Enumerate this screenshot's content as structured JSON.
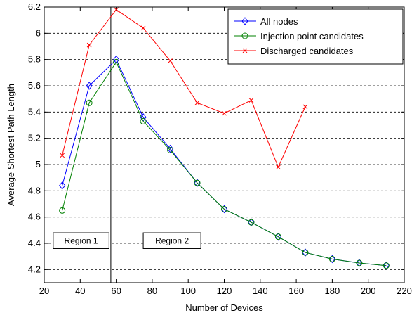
{
  "chart_data": {
    "type": "line",
    "xlabel": "Number of Devices",
    "ylabel": "Average Shortest Path Length",
    "xlim": [
      20,
      220
    ],
    "ylim": [
      4.1,
      6.2
    ],
    "xticks": [
      20,
      40,
      60,
      80,
      100,
      120,
      140,
      160,
      180,
      200,
      220
    ],
    "yticks": [
      4.2,
      4.4,
      4.6,
      4.8,
      5.0,
      5.2,
      5.4,
      5.6,
      5.8,
      6.0,
      6.2
    ],
    "xtick_labels": [
      "20",
      "40",
      "60",
      "80",
      "100",
      "120",
      "140",
      "160",
      "180",
      "200",
      "220"
    ],
    "ytick_labels": [
      "4.2",
      "4.4",
      "4.6",
      "4.8",
      "5",
      "5.2",
      "5.4",
      "5.6",
      "5.8",
      "6",
      "6.2"
    ],
    "grid": "horizontal dashed",
    "legend_position": "top-right",
    "series": [
      {
        "name": "All nodes",
        "color": "#0000ff",
        "marker": "diamond",
        "x": [
          30,
          45,
          60,
          75,
          90,
          105,
          120,
          135,
          150,
          165,
          180,
          195,
          210
        ],
        "y": [
          4.84,
          5.6,
          5.8,
          5.36,
          5.12,
          4.86,
          4.66,
          4.56,
          4.45,
          4.33,
          4.28,
          4.25,
          4.23
        ]
      },
      {
        "name": "Injection point candidates",
        "color": "#008000",
        "marker": "circle",
        "x": [
          30,
          45,
          60,
          75,
          90,
          105,
          120,
          135,
          150,
          165,
          180,
          195,
          210
        ],
        "y": [
          4.65,
          5.47,
          5.78,
          5.33,
          5.11,
          4.86,
          4.66,
          4.56,
          4.45,
          4.33,
          4.28,
          4.25,
          4.23
        ]
      },
      {
        "name": "Discharged candidates",
        "color": "#ff0000",
        "marker": "x",
        "x": [
          30,
          45,
          60,
          75,
          90,
          105,
          120,
          135,
          150,
          165
        ],
        "y": [
          5.07,
          5.91,
          6.18,
          6.04,
          5.79,
          5.47,
          5.39,
          5.49,
          4.98,
          5.44
        ]
      }
    ],
    "divider_x": 57,
    "annotations": [
      {
        "text": "Region 1",
        "x0": 25,
        "x1": 56,
        "y0": 4.36,
        "y1": 4.48
      },
      {
        "text": "Region 2",
        "x0": 75,
        "x1": 107,
        "y0": 4.36,
        "y1": 4.48
      }
    ]
  }
}
